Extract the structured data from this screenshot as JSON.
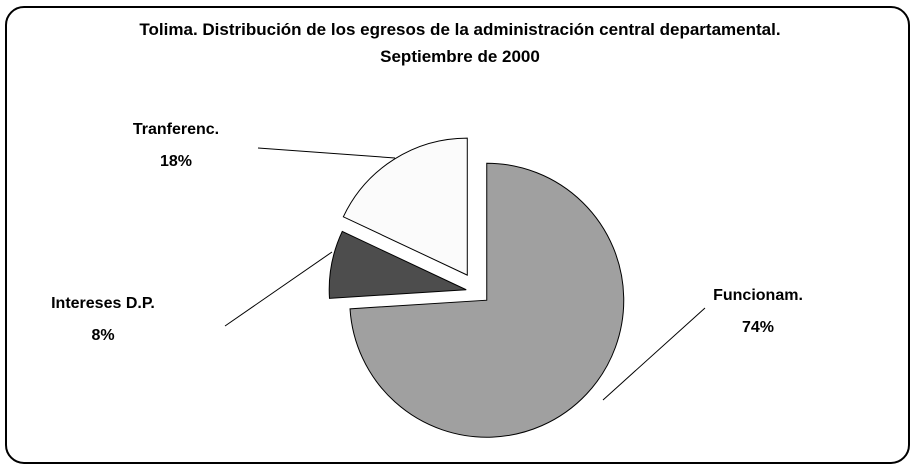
{
  "chart_data": {
    "type": "pie",
    "title": "Tolima. Distribución de los egresos de la administración central departamental. Septiembre de 2000",
    "categories": [
      "Funcionam.",
      "Intereses D.P.",
      "Tranferenc."
    ],
    "values": [
      74,
      8,
      18
    ],
    "value_labels": [
      "74%",
      "8%",
      "18%"
    ],
    "colors": [
      "#a0a0a0",
      "#4d4d4d",
      "#fbfbfb"
    ]
  }
}
